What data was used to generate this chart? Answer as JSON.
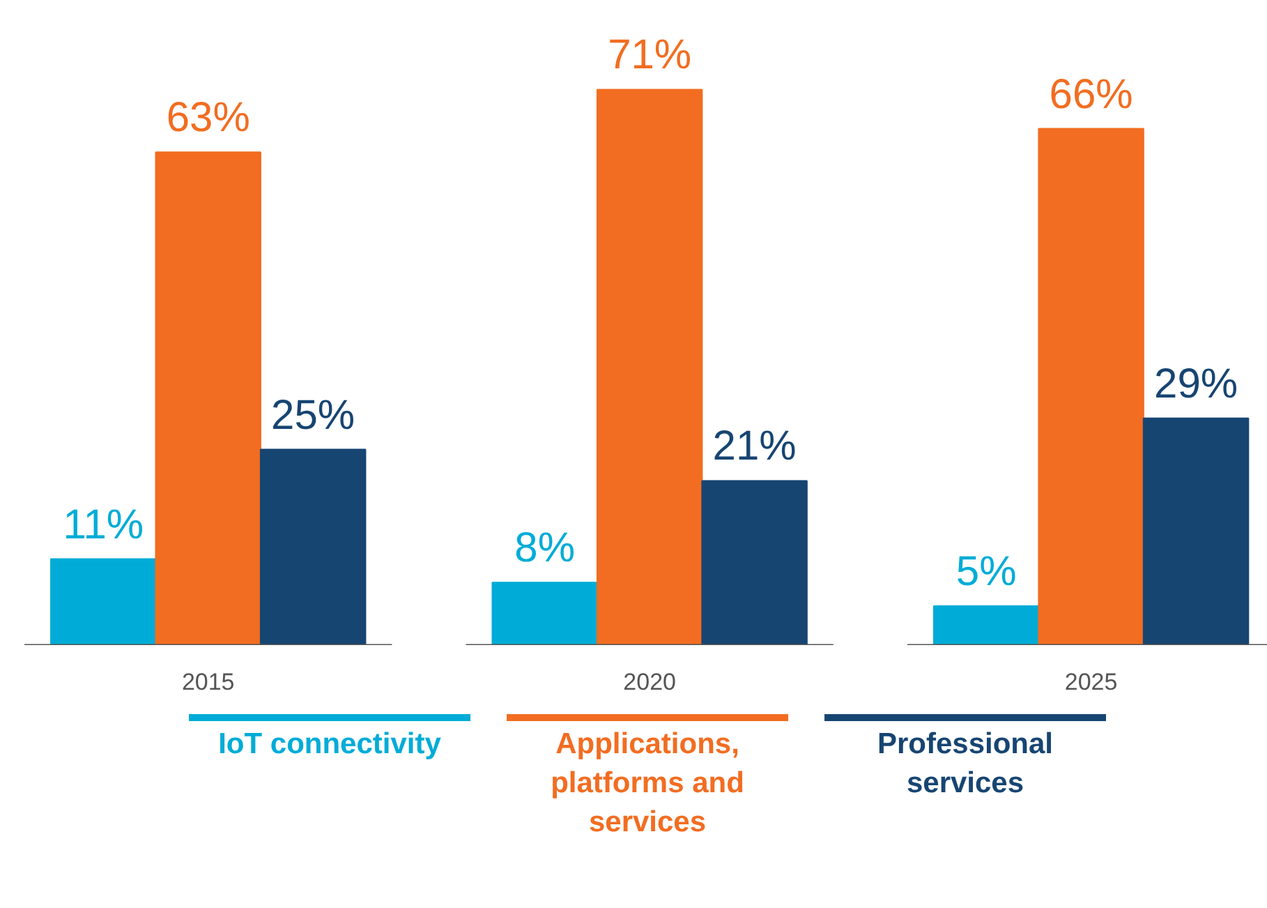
{
  "chart_data": {
    "type": "bar",
    "categories": [
      "2015",
      "2020",
      "2025"
    ],
    "legend": "bottom",
    "grid": false,
    "series": [
      {
        "name": "IoT connectivity",
        "color": "#00acd7",
        "values": [
          11,
          8,
          5
        ],
        "value_labels": [
          "11%",
          "8%",
          "5%"
        ]
      },
      {
        "name": "Applications, platforms and services",
        "color": "#f26d21",
        "values": [
          63,
          71,
          66
        ],
        "value_labels": [
          "63%",
          "71%",
          "66%"
        ]
      },
      {
        "name": "Professional services",
        "color": "#174572",
        "values": [
          25,
          21,
          29
        ],
        "value_labels": [
          "25%",
          "21%",
          "29%"
        ]
      }
    ]
  }
}
